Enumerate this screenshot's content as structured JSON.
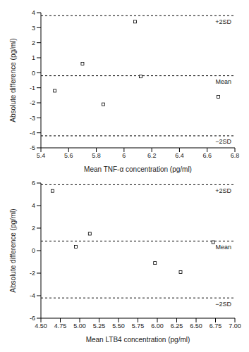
{
  "chart_data": [
    {
      "type": "scatter",
      "x_label": "Mean TNF-α concentration (pg/ml)",
      "y_label": "Absolute difference (pg/ml)",
      "x": [
        5.5,
        5.7,
        5.85,
        6.08,
        6.12,
        6.68
      ],
      "values": [
        -1.2,
        0.6,
        -2.1,
        3.4,
        -0.25,
        -1.6
      ],
      "xlim": [
        5.4,
        6.8
      ],
      "xticks": [
        5.4,
        5.6,
        5.8,
        6.0,
        6.2,
        6.4,
        6.6,
        6.8
      ],
      "ylim": [
        -5,
        4
      ],
      "yticks": [
        -5,
        -4,
        -3,
        -2,
        -1,
        0,
        1,
        2,
        3,
        4
      ],
      "lines": [
        {
          "label": "+2SD",
          "value": 3.8
        },
        {
          "label": "Mean",
          "value": -0.2
        },
        {
          "label": "−2SD",
          "value": -4.2
        }
      ],
      "line_style": "dashed",
      "marker": "square",
      "color": "#000000"
    },
    {
      "type": "scatter",
      "x_label": "Mean LTB4 concentration (pg/ml)",
      "y_label": "Absolute difference (pg/ml)",
      "x": [
        4.65,
        4.95,
        5.13,
        5.97,
        6.3,
        6.72
      ],
      "values": [
        5.3,
        0.35,
        1.5,
        -1.1,
        -1.9,
        0.75
      ],
      "xlim": [
        4.5,
        7.0
      ],
      "xticks": [
        {
          "value": 4.5,
          "label": "4.50"
        },
        4.75,
        {
          "value": 5.0,
          "label": "5.00"
        },
        5.25,
        {
          "value": 5.5,
          "label": "5.50"
        },
        5.75,
        {
          "value": 6.0,
          "label": "6.00"
        },
        6.25,
        {
          "value": 6.5,
          "label": "6.50"
        },
        6.75,
        {
          "value": 7.0,
          "label": "7.00"
        }
      ],
      "ylim": [
        -6,
        6
      ],
      "yticks": [
        -6,
        -4,
        -2,
        0,
        2,
        4,
        6
      ],
      "lines": [
        {
          "label": "+2SD",
          "value": 5.85
        },
        {
          "label": "Mean",
          "value": 0.85
        },
        {
          "label": "−2SD",
          "value": -4.2
        }
      ],
      "line_style": "dashed",
      "marker": "square",
      "color": "#000000"
    }
  ]
}
